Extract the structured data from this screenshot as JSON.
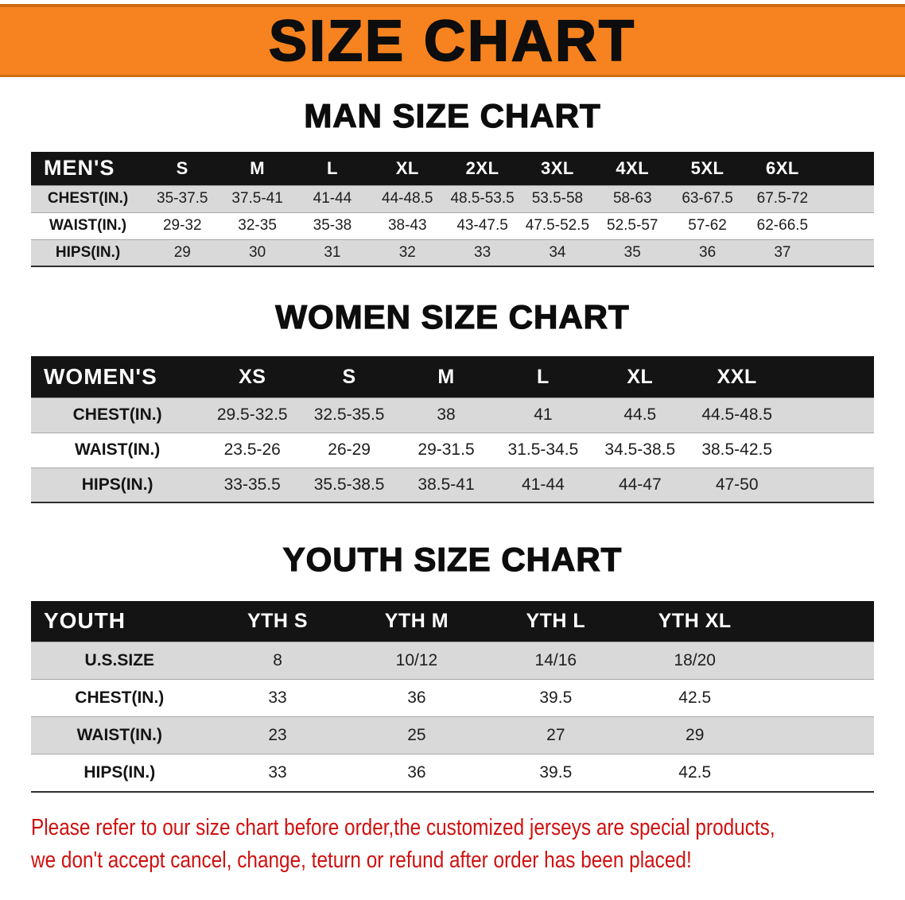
{
  "banner": {
    "title": "SIZE CHART"
  },
  "colors": {
    "banner_bg": "#f6831f",
    "banner_border": "#cf6c12",
    "table_header_bg": "#141414",
    "row_alt_bg": "#d9d9d9",
    "disclaimer_text": "#cf1110"
  },
  "sections": [
    {
      "id": "men",
      "heading": "MAN SIZE CHART",
      "table": {
        "header": [
          "MEN'S",
          "S",
          "M",
          "L",
          "XL",
          "2XL",
          "3XL",
          "4XL",
          "5XL",
          "6XL"
        ],
        "rows": [
          {
            "label": "CHEST(IN.)",
            "values": [
              "35-37.5",
              "37.5-41",
              "41-44",
              "44-48.5",
              "48.5-53.5",
              "53.5-58",
              "58-63",
              "63-67.5",
              "67.5-72"
            ]
          },
          {
            "label": "WAIST(IN.)",
            "values": [
              "29-32",
              "32-35",
              "35-38",
              "38-43",
              "43-47.5",
              "47.5-52.5",
              "52.5-57",
              "57-62",
              "62-66.5"
            ]
          },
          {
            "label": "HIPS(IN.)",
            "values": [
              "29",
              "30",
              "31",
              "32",
              "33",
              "34",
              "35",
              "36",
              "37"
            ]
          }
        ]
      }
    },
    {
      "id": "women",
      "heading": "WOMEN SIZE CHART",
      "table": {
        "header": [
          "WOMEN'S",
          "XS",
          "S",
          "M",
          "L",
          "XL",
          "XXL"
        ],
        "rows": [
          {
            "label": "CHEST(IN.)",
            "values": [
              "29.5-32.5",
              "32.5-35.5",
              "38",
              "41",
              "44.5",
              "44.5-48.5"
            ]
          },
          {
            "label": "WAIST(IN.)",
            "values": [
              "23.5-26",
              "26-29",
              "29-31.5",
              "31.5-34.5",
              "34.5-38.5",
              "38.5-42.5"
            ]
          },
          {
            "label": "HIPS(IN.)",
            "values": [
              "33-35.5",
              "35.5-38.5",
              "38.5-41",
              "41-44",
              "44-47",
              "47-50"
            ]
          }
        ]
      }
    },
    {
      "id": "youth",
      "heading": "YOUTH SIZE CHART",
      "table": {
        "header": [
          "YOUTH",
          "YTH S",
          "YTH M",
          "YTH L",
          "YTH XL"
        ],
        "rows": [
          {
            "label": "U.S.SIZE",
            "values": [
              "8",
              "10/12",
              "14/16",
              "18/20"
            ]
          },
          {
            "label": "CHEST(IN.)",
            "values": [
              "33",
              "36",
              "39.5",
              "42.5"
            ]
          },
          {
            "label": "WAIST(IN.)",
            "values": [
              "23",
              "25",
              "27",
              "29"
            ]
          },
          {
            "label": "HIPS(IN.)",
            "values": [
              "33",
              "36",
              "39.5",
              "42.5"
            ]
          }
        ]
      }
    }
  ],
  "disclaimer": {
    "line1": "Please refer to our size chart before order,the customized jerseys are special products,",
    "line2": "we don't accept cancel, change, teturn or refund after order has been placed!"
  }
}
